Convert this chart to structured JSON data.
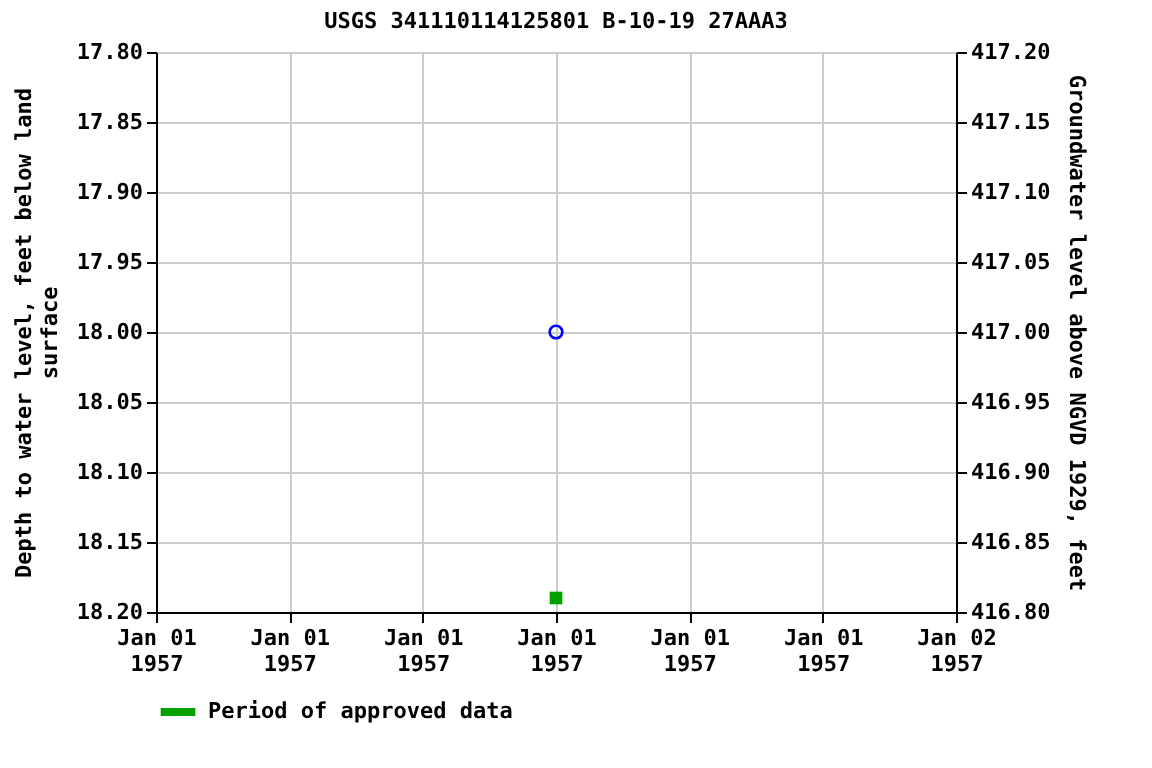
{
  "chart_data": {
    "type": "scatter",
    "title": "USGS 341110114125801 B-10-19 27AAA3",
    "ylabel": "Depth to water level, feet below land\nsurface",
    "y2label": "Groundwater level above NGVD 1929, feet",
    "categories": [
      "Jan 01\n1957",
      "Jan 01\n1957",
      "Jan 01\n1957",
      "Jan 01\n1957",
      "Jan 01\n1957",
      "Jan 01\n1957",
      "Jan 02\n1957"
    ],
    "series": [
      {
        "color": "#0000ff",
        "marker": "circle",
        "values": [
          null,
          null,
          null,
          18.0,
          null,
          null,
          null
        ]
      },
      {
        "name": "Period of approved data",
        "color": "#00a000",
        "marker": "square",
        "values": [
          null,
          null,
          null,
          18.19,
          null,
          null,
          null
        ]
      }
    ],
    "ylim": [
      18.2,
      17.8
    ],
    "yticks": [
      {
        "value": 17.8,
        "label": "17.80"
      },
      {
        "value": 17.85,
        "label": "17.85"
      },
      {
        "value": 17.9,
        "label": "17.90"
      },
      {
        "value": 17.95,
        "label": "17.95"
      },
      {
        "value": 18.0,
        "label": "18.00"
      },
      {
        "value": 18.05,
        "label": "18.05"
      },
      {
        "value": 18.1,
        "label": "18.10"
      },
      {
        "value": 18.15,
        "label": "18.15"
      },
      {
        "value": 18.2,
        "label": "18.20"
      }
    ],
    "y2lim": [
      416.8,
      417.2
    ],
    "y2ticks": [
      {
        "value": 416.8,
        "label": "416.80"
      },
      {
        "value": 416.85,
        "label": "416.85"
      },
      {
        "value": 416.9,
        "label": "416.90"
      },
      {
        "value": 416.95,
        "label": "416.95"
      },
      {
        "value": 417.0,
        "label": "417.00"
      },
      {
        "value": 417.05,
        "label": "417.05"
      },
      {
        "value": 417.1,
        "label": "417.10"
      },
      {
        "value": 417.15,
        "label": "417.15"
      },
      {
        "value": 417.2,
        "label": "417.20"
      }
    ],
    "grid": true,
    "legend": "bottom"
  }
}
